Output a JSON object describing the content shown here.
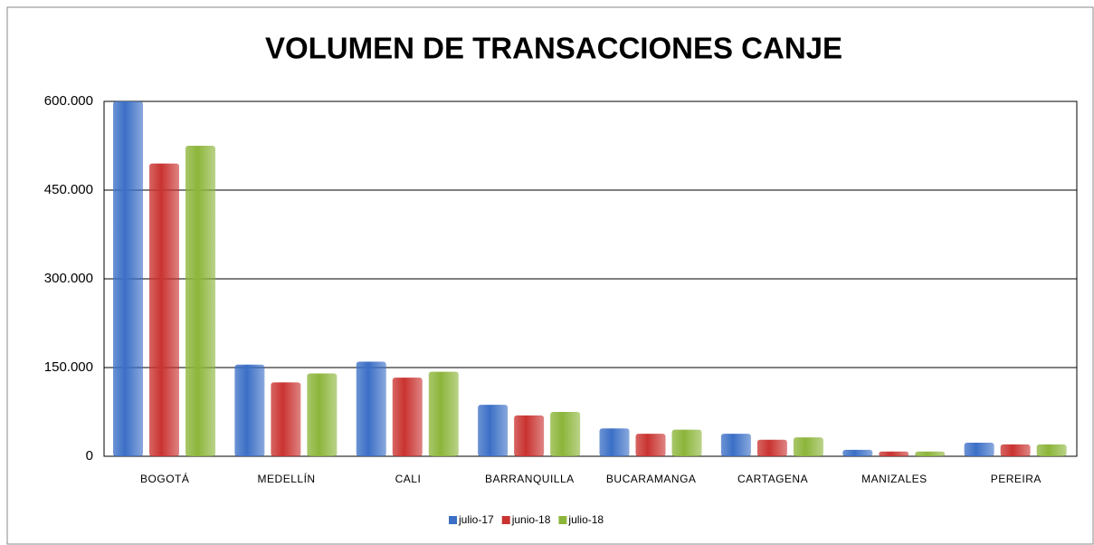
{
  "chart_data": {
    "type": "bar",
    "title": "VOLUMEN DE TRANSACCIONES CANJE",
    "categories": [
      "BOGOTÁ",
      "MEDELLÍN",
      "CALI",
      "BARRANQUILLA",
      "BUCARAMANGA",
      "CARTAGENA",
      "MANIZALES",
      "PEREIRA"
    ],
    "series": [
      {
        "name": "julio-17",
        "color": "#3b6fc6",
        "values": [
          600000,
          155000,
          160000,
          87000,
          47000,
          38000,
          11000,
          23000
        ]
      },
      {
        "name": "junio-18",
        "color": "#c93330",
        "values": [
          495000,
          125000,
          133000,
          69000,
          38000,
          28000,
          8000,
          20000
        ]
      },
      {
        "name": "julio-18",
        "color": "#8cb53a",
        "values": [
          525000,
          140000,
          143000,
          75000,
          45000,
          32000,
          8000,
          20000
        ]
      }
    ],
    "ylim": [
      0,
      600000
    ],
    "yticks": [
      0,
      {
        "value": 150000,
        "label": "150.000"
      },
      {
        "value": 300000,
        "label": "300.000"
      },
      {
        "value": 450000,
        "label": "450.000"
      },
      {
        "value": 600000,
        "label": "600.000"
      }
    ],
    "grid": true,
    "legend": "bottom"
  }
}
